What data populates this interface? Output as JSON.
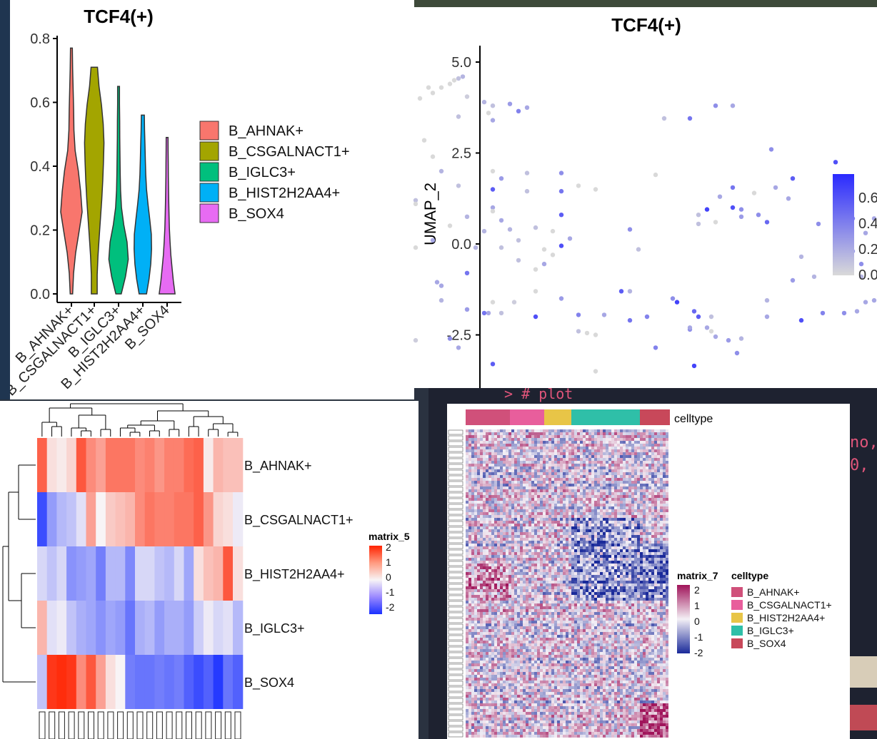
{
  "violin": {
    "title": "TCF4(+)",
    "categories": [
      "B_AHNAK+",
      "B_CSGALNACT1+",
      "B_IGLC3+",
      "B_HIST2H2AA4+",
      "B_SOX4"
    ],
    "colors": [
      "#F8766D",
      "#A3A500",
      "#00BF7D",
      "#00B0F6",
      "#E76BF3"
    ],
    "y_ticks": [
      "0.0",
      "0.2",
      "0.4",
      "0.6",
      "0.8"
    ]
  },
  "umap": {
    "title": "TCF4(+)",
    "ylabel": "UMAP_2",
    "y_ticks": [
      "5.0",
      "2.5",
      "0.0",
      "-2.5"
    ],
    "legend_ticks": [
      "0.6",
      "0.4",
      "0.2",
      "0.0"
    ]
  },
  "heatmap5": {
    "legend_title": "matrix_5",
    "legend_ticks": [
      "2",
      "1",
      "0",
      "-1",
      "-2"
    ],
    "row_labels": [
      "B_AHNAK+",
      "B_CSGALNACT1+",
      "B_HIST2H2AA4+",
      "B_IGLC3+",
      "B_SOX4"
    ]
  },
  "heatmap7": {
    "annotation_label": "celltype",
    "legend_title": "matrix_7",
    "legend_ticks": [
      "2",
      "1",
      "0",
      "-1",
      "-2"
    ],
    "celltype_title": "celltype",
    "celltypes": [
      {
        "name": "B_AHNAK+",
        "color": "#D0507A"
      },
      {
        "name": "B_CSGALNACT1+",
        "color": "#E85E9C"
      },
      {
        "name": "B_HIST2H2AA4+",
        "color": "#E8C547"
      },
      {
        "name": "B_IGLC3+",
        "color": "#2FBFA8"
      },
      {
        "name": "B_SOX4",
        "color": "#C8485A"
      }
    ]
  },
  "terminal": {
    "line1": "> # plot",
    "line2": "no,",
    "line3": "0,"
  },
  "chart_data": [
    {
      "type": "violin",
      "title": "TCF4(+)",
      "categories": [
        "B_AHNAK+",
        "B_CSGALNACT1+",
        "B_IGLC3+",
        "B_HIST2H2AA4+",
        "B_SOX4"
      ],
      "series": [
        {
          "name": "B_AHNAK+",
          "max": 0.77,
          "widths": [
            0.05,
            0.14,
            0.35,
            0.68,
            1.0,
            0.85,
            0.62,
            0.3,
            0.18,
            0.15,
            0.1,
            0.05,
            0.02
          ]
        },
        {
          "name": "B_CSGALNACT1+",
          "max": 0.71,
          "widths": [
            0.22,
            0.22,
            0.3,
            0.42,
            0.55,
            0.68,
            0.78,
            0.85,
            0.9,
            0.82,
            0.65,
            0.4,
            0.25
          ]
        },
        {
          "name": "B_IGLC3+",
          "max": 0.65,
          "widths": [
            0.2,
            0.62,
            0.9,
            0.78,
            0.45,
            0.22,
            0.13,
            0.09,
            0.07,
            0.05,
            0.04,
            0.02,
            0.02
          ]
        },
        {
          "name": "B_HIST2H2AA4+",
          "max": 0.56,
          "widths": [
            0.3,
            0.55,
            0.72,
            0.8,
            0.78,
            0.62,
            0.45,
            0.3,
            0.22,
            0.18,
            0.14,
            0.1,
            0.08
          ]
        },
        {
          "name": "B_SOX4",
          "max": 0.49,
          "widths": [
            0.72,
            0.55,
            0.42,
            0.3,
            0.22,
            0.16,
            0.12,
            0.09,
            0.07,
            0.05,
            0.04,
            0.03,
            0.02
          ]
        }
      ],
      "ylim": [
        0,
        0.8
      ]
    },
    {
      "type": "scatter",
      "title": "TCF4(+)",
      "ylabel": "UMAP_2",
      "ylim": [
        -3.8,
        5.4
      ],
      "color_scale": {
        "low": "#d9d9d9",
        "high": "#2a2aff",
        "range": [
          0,
          0.7
        ]
      },
      "points": [
        [
          -2.6,
          4.3,
          0
        ],
        [
          -2.5,
          4.4,
          0
        ],
        [
          -2.45,
          4.5,
          0
        ],
        [
          -2.4,
          4.55,
          0.1
        ],
        [
          -2.35,
          4.6,
          0.15
        ],
        [
          -2.75,
          4.3,
          0
        ],
        [
          -2.7,
          4.15,
          0
        ],
        [
          -2.85,
          4.0,
          0
        ],
        [
          -2.3,
          4.05,
          0.05
        ],
        [
          -2.1,
          3.9,
          0.15
        ],
        [
          -2.0,
          3.8,
          0.1
        ],
        [
          -2.05,
          3.6,
          0
        ],
        [
          -1.8,
          3.85,
          0.25
        ],
        [
          -1.7,
          3.65,
          0.35
        ],
        [
          -1.6,
          3.75,
          0.2
        ],
        [
          -2.0,
          3.4,
          0.2
        ],
        [
          -2.4,
          3.5,
          0.1
        ],
        [
          -3.0,
          3.4,
          0.1
        ],
        [
          -3.3,
          3.4,
          0.15
        ],
        [
          -3.2,
          2.9,
          0.2
        ],
        [
          -2.8,
          2.85,
          0
        ],
        [
          -2.7,
          2.4,
          0
        ],
        [
          -3.2,
          2.5,
          0.1
        ],
        [
          -2.6,
          2.0,
          0.15
        ],
        [
          -2.0,
          2.0,
          0
        ],
        [
          -1.6,
          1.95,
          0.1
        ],
        [
          -1.2,
          1.95,
          0.3
        ],
        [
          -1.9,
          1.8,
          0.25
        ],
        [
          -3.1,
          1.9,
          0.1
        ],
        [
          -0.8,
          1.5,
          0
        ],
        [
          -1.0,
          1.6,
          0
        ],
        [
          -1.2,
          1.45,
          0.4
        ],
        [
          -1.6,
          1.45,
          0.1
        ],
        [
          -2.0,
          1.5,
          0.5
        ],
        [
          -2.4,
          1.6,
          0.1
        ],
        [
          -2.9,
          1.2,
          0.1
        ],
        [
          -2.9,
          1.1,
          0
        ],
        [
          -2.0,
          1.0,
          0.2
        ],
        [
          -2.0,
          0.9,
          0
        ],
        [
          -1.2,
          0.8,
          0.5
        ],
        [
          -1.9,
          0.65,
          0.2
        ],
        [
          -2.3,
          0.75,
          0.15
        ],
        [
          -3.2,
          0.8,
          0.2
        ],
        [
          -3.5,
          0.7,
          0.1
        ],
        [
          -3.4,
          0.3,
          0.1
        ],
        [
          -3.3,
          0.3,
          0.15
        ],
        [
          -2.5,
          0.5,
          0
        ],
        [
          -2.1,
          0.35,
          0.15
        ],
        [
          -1.8,
          0.4,
          0.15
        ],
        [
          -1.5,
          0.45,
          0.1
        ],
        [
          -1.3,
          0.35,
          0
        ],
        [
          -1.1,
          0.15,
          0.2
        ],
        [
          -1.7,
          0.1,
          0.1
        ],
        [
          -1.9,
          -0.1,
          0.1
        ],
        [
          -2.2,
          -0.1,
          0.15
        ],
        [
          -2.7,
          0.1,
          0.2
        ],
        [
          -2.9,
          -0.1,
          0
        ],
        [
          -3.0,
          -0.3,
          0.15
        ],
        [
          -3.4,
          -0.15,
          0.1
        ],
        [
          -3.5,
          -0.5,
          0.1
        ],
        [
          -3.3,
          -0.95,
          0.2
        ],
        [
          -3.3,
          -1.35,
          0.1
        ],
        [
          -2.3,
          -0.8,
          0.4
        ],
        [
          -2.6,
          -1.15,
          0.2
        ],
        [
          -1.7,
          -0.45,
          0.1
        ],
        [
          -1.4,
          -0.55,
          0.2
        ],
        [
          -1.3,
          -0.3,
          0
        ],
        [
          -1.4,
          -0.15,
          0
        ],
        [
          -1.2,
          -0.05,
          0.55
        ],
        [
          -1.5,
          -0.7,
          0
        ],
        [
          -1.5,
          -1.3,
          0
        ],
        [
          -1.75,
          -1.6,
          0.05
        ],
        [
          -2.0,
          -1.6,
          0
        ],
        [
          -2.3,
          -1.8,
          0.25
        ],
        [
          -2.05,
          -1.9,
          0.2
        ],
        [
          -2.6,
          -1.55,
          0.15
        ],
        [
          -1.9,
          -1.9,
          0.1
        ],
        [
          -2.1,
          -1.9,
          0.4
        ],
        [
          -2.65,
          -1.05,
          0.2
        ],
        [
          -3.55,
          -2.25,
          0.1
        ],
        [
          -2.9,
          -2.65,
          0.05
        ],
        [
          -3.0,
          -2.7,
          0
        ],
        [
          -2.5,
          -2.6,
          0.3
        ],
        [
          -2.4,
          -2.85,
          0.2
        ],
        [
          -1.5,
          -2.0,
          0.55
        ],
        [
          -1.2,
          -1.5,
          0.25
        ],
        [
          -1.0,
          -1.95,
          0.35
        ],
        [
          -1.0,
          -2.4,
          0.1
        ],
        [
          -0.9,
          -2.45,
          0
        ],
        [
          -0.8,
          -2.5,
          0
        ],
        [
          -0.8,
          -3.5,
          0
        ],
        [
          -2.0,
          -3.3,
          0.5
        ],
        [
          -0.5,
          -1.3,
          0.5
        ],
        [
          -0.4,
          -1.3,
          0.15
        ],
        [
          -0.7,
          -1.95,
          0.2
        ],
        [
          -0.4,
          -2.1,
          0.4
        ],
        [
          -0.2,
          -2.0,
          0.35
        ],
        [
          0.1,
          -1.5,
          0.3
        ],
        [
          0.15,
          -1.6,
          0.6
        ],
        [
          0.35,
          -1.85,
          0.45
        ],
        [
          0.4,
          -2.0,
          0.5
        ],
        [
          0.5,
          -2.3,
          0.2
        ],
        [
          0.55,
          -2.4,
          0
        ],
        [
          0.3,
          -2.35,
          0.3
        ],
        [
          0.6,
          -2.55,
          0.2
        ],
        [
          0.75,
          -2.65,
          0.25
        ],
        [
          0.55,
          -2.0,
          0.1
        ],
        [
          0.3,
          -2.3,
          0.2
        ],
        [
          -0.1,
          -2.85,
          0.35
        ],
        [
          0.35,
          -3.35,
          0.6
        ],
        [
          0.85,
          -3.0,
          0.3
        ],
        [
          0.9,
          -2.6,
          0.15
        ],
        [
          1.2,
          -1.55,
          0.15
        ],
        [
          1.2,
          -2.0,
          0.2
        ],
        [
          1.6,
          -2.1,
          0.55
        ],
        [
          1.85,
          -1.9,
          0.35
        ],
        [
          2.1,
          -1.9,
          0.3
        ],
        [
          2.25,
          -1.85,
          0.2
        ],
        [
          2.35,
          -1.6,
          0.2
        ],
        [
          2.45,
          -1.55,
          0.2
        ],
        [
          2.55,
          -2.0,
          0.2
        ],
        [
          1.5,
          -1.0,
          0.25
        ],
        [
          1.75,
          -0.9,
          0.15
        ],
        [
          2.3,
          -0.9,
          0.15
        ],
        [
          1.6,
          -0.35,
          0.15
        ],
        [
          2.2,
          -0.2,
          0.25
        ],
        [
          2.3,
          -0.55,
          0.3
        ],
        [
          2.35,
          0.3,
          0.2
        ],
        [
          2.0,
          0.4,
          0.2
        ],
        [
          1.8,
          0.55,
          0.3
        ],
        [
          2.0,
          0.65,
          0.6
        ],
        [
          2.2,
          0.7,
          0.35
        ],
        [
          2.45,
          0.7,
          0.2
        ],
        [
          2.6,
          0.65,
          0.2
        ],
        [
          1.2,
          0.6,
          0.45
        ],
        [
          1.1,
          0.8,
          0.3
        ],
        [
          0.9,
          0.95,
          0.3
        ],
        [
          0.8,
          1.0,
          0.55
        ],
        [
          0.9,
          0.75,
          0.25
        ],
        [
          0.6,
          0.6,
          0.0
        ],
        [
          0.4,
          0.55,
          0.1
        ],
        [
          0.4,
          0.8,
          0.1
        ],
        [
          0.65,
          1.3,
          0.2
        ],
        [
          0.8,
          1.55,
          0.4
        ],
        [
          1.05,
          1.4,
          0.0
        ],
        [
          1.3,
          1.55,
          0.2
        ],
        [
          1.45,
          1.25,
          0.2
        ],
        [
          1.5,
          1.8,
          0.5
        ],
        [
          1.25,
          2.6,
          0.3
        ],
        [
          2.0,
          2.25,
          0.55
        ],
        [
          0.6,
          3.8,
          0.3
        ],
        [
          0.8,
          3.8,
          0.2
        ],
        [
          0.3,
          3.45,
          0.4
        ],
        [
          0.0,
          3.45,
          0.1
        ],
        [
          -0.1,
          1.9,
          0.0
        ],
        [
          0.5,
          0.95,
          0.6
        ],
        [
          -0.4,
          0.4,
          0.3
        ],
        [
          -0.3,
          -0.15,
          0.1
        ]
      ]
    },
    {
      "type": "heatmap",
      "legend_title": "matrix_5",
      "rows": [
        "B_AHNAK+",
        "B_CSGALNACT1+",
        "B_HIST2H2AA4+",
        "B_IGLC3+",
        "B_SOX4"
      ],
      "n_columns": 21,
      "values": [
        [
          1.4,
          0.2,
          0.1,
          0.3,
          1.5,
          1.0,
          0.8,
          1.2,
          1.2,
          1.2,
          1.0,
          1.1,
          0.9,
          1.1,
          1.1,
          1.3,
          1.4,
          0.1,
          0.6,
          0.5,
          0.5
        ],
        [
          -1.7,
          -0.9,
          -0.6,
          -0.5,
          -0.2,
          0.8,
          0.0,
          0.4,
          0.5,
          0.6,
          1.0,
          1.2,
          1.1,
          1.1,
          1.2,
          1.2,
          1.4,
          0.9,
          0.3,
          0.2,
          -0.1
        ],
        [
          -0.3,
          -0.5,
          -0.3,
          -1.0,
          -0.9,
          -0.8,
          -1.2,
          -0.6,
          -0.6,
          -1.1,
          -0.3,
          -0.3,
          -0.5,
          -0.6,
          -0.3,
          -0.8,
          0.2,
          0.5,
          0.6,
          1.5,
          0.2
        ],
        [
          0.6,
          -0.2,
          -0.1,
          -0.5,
          -0.7,
          -0.8,
          -1.0,
          -0.8,
          -0.9,
          -1.3,
          -0.7,
          -0.6,
          -0.9,
          -0.7,
          -0.7,
          -0.9,
          -0.4,
          -0.1,
          -0.3,
          -0.2,
          -0.6
        ],
        [
          -0.5,
          1.8,
          1.9,
          1.8,
          1.0,
          1.5,
          0.8,
          0.2,
          0.0,
          -1.2,
          -1.3,
          -1.3,
          -1.2,
          -1.3,
          -1.2,
          -1.5,
          -1.7,
          -1.5,
          -1.9,
          -1.3,
          -1.5
        ]
      ],
      "ylim": [
        -2,
        2
      ]
    },
    {
      "type": "heatmap",
      "legend_title": "matrix_7",
      "annotation": "celltype",
      "groups": [
        "B_AHNAK+",
        "B_CSGALNACT1+",
        "B_HIST2H2AA4+",
        "B_IGLC3+",
        "B_SOX4"
      ],
      "ylim": [
        -2,
        2
      ]
    }
  ]
}
